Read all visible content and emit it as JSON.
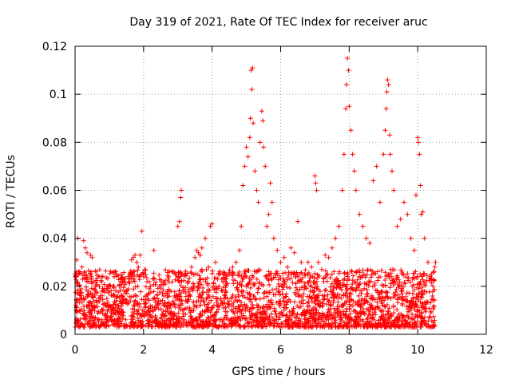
{
  "chart_data": {
    "type": "scatter",
    "title": "Day 319 of 2021, Rate Of TEC Index for receiver aruc",
    "xlabel": "GPS time / hours",
    "ylabel": "ROTI / TECUs",
    "xlim": [
      0,
      12
    ],
    "ylim": [
      0,
      0.12
    ],
    "xticks": [
      0,
      2,
      4,
      6,
      8,
      10,
      12
    ],
    "xtick_labels": [
      "0",
      "2",
      "4",
      "6",
      "8",
      "10",
      "12"
    ],
    "yticks": [
      0,
      0.02,
      0.04,
      0.06,
      0.08,
      0.1,
      0.12
    ],
    "ytick_labels": [
      "0",
      "0.02",
      "0.04",
      "0.06",
      "0.08",
      "0.1",
      "0.12"
    ],
    "grid": true,
    "marker": "+",
    "marker_color": "#ff0000",
    "series": [
      {
        "name": "ROTI",
        "points": [
          [
            0.02,
            0.012
          ],
          [
            0.05,
            0.031
          ],
          [
            0.08,
            0.04
          ],
          [
            0.1,
            0.025
          ],
          [
            0.15,
            0.018
          ],
          [
            0.2,
            0.028
          ],
          [
            0.25,
            0.039
          ],
          [
            0.3,
            0.036
          ],
          [
            0.35,
            0.034
          ],
          [
            0.4,
            0.022
          ],
          [
            0.45,
            0.033
          ],
          [
            0.5,
            0.032
          ],
          [
            0.6,
            0.02
          ],
          [
            0.7,
            0.015
          ],
          [
            0.8,
            0.01
          ],
          [
            0.9,
            0.012
          ],
          [
            1.0,
            0.018
          ],
          [
            1.1,
            0.016
          ],
          [
            1.2,
            0.014
          ],
          [
            1.3,
            0.02
          ],
          [
            1.4,
            0.022
          ],
          [
            1.5,
            0.018
          ],
          [
            1.6,
            0.025
          ],
          [
            1.65,
            0.031
          ],
          [
            1.7,
            0.032
          ],
          [
            1.75,
            0.033
          ],
          [
            1.8,
            0.03
          ],
          [
            1.85,
            0.028
          ],
          [
            1.9,
            0.033
          ],
          [
            1.95,
            0.043
          ],
          [
            2.0,
            0.024
          ],
          [
            2.1,
            0.022
          ],
          [
            2.2,
            0.02
          ],
          [
            2.3,
            0.035
          ],
          [
            2.4,
            0.015
          ],
          [
            2.6,
            0.012
          ],
          [
            2.8,
            0.018
          ],
          [
            2.9,
            0.016
          ],
          [
            3.0,
            0.045
          ],
          [
            3.05,
            0.047
          ],
          [
            3.08,
            0.057
          ],
          [
            3.1,
            0.06
          ],
          [
            3.2,
            0.025
          ],
          [
            3.3,
            0.022
          ],
          [
            3.4,
            0.028
          ],
          [
            3.5,
            0.032
          ],
          [
            3.55,
            0.035
          ],
          [
            3.6,
            0.034
          ],
          [
            3.65,
            0.033
          ],
          [
            3.7,
            0.036
          ],
          [
            3.8,
            0.04
          ],
          [
            3.9,
            0.028
          ],
          [
            3.95,
            0.045
          ],
          [
            4.0,
            0.046
          ],
          [
            4.1,
            0.03
          ],
          [
            4.2,
            0.02
          ],
          [
            4.3,
            0.018
          ],
          [
            4.4,
            0.022
          ],
          [
            4.5,
            0.025
          ],
          [
            4.6,
            0.028
          ],
          [
            4.7,
            0.03
          ],
          [
            4.8,
            0.035
          ],
          [
            4.85,
            0.045
          ],
          [
            4.9,
            0.062
          ],
          [
            4.95,
            0.07
          ],
          [
            5.0,
            0.078
          ],
          [
            5.05,
            0.074
          ],
          [
            5.1,
            0.082
          ],
          [
            5.12,
            0.09
          ],
          [
            5.14,
            0.11
          ],
          [
            5.16,
            0.102
          ],
          [
            5.18,
            0.111
          ],
          [
            5.2,
            0.088
          ],
          [
            5.25,
            0.068
          ],
          [
            5.3,
            0.06
          ],
          [
            5.35,
            0.055
          ],
          [
            5.4,
            0.08
          ],
          [
            5.45,
            0.093
          ],
          [
            5.48,
            0.089
          ],
          [
            5.5,
            0.078
          ],
          [
            5.55,
            0.07
          ],
          [
            5.6,
            0.045
          ],
          [
            5.65,
            0.05
          ],
          [
            5.7,
            0.063
          ],
          [
            5.75,
            0.055
          ],
          [
            5.8,
            0.04
          ],
          [
            5.9,
            0.035
          ],
          [
            6.0,
            0.03
          ],
          [
            6.1,
            0.032
          ],
          [
            6.2,
            0.028
          ],
          [
            6.3,
            0.036
          ],
          [
            6.4,
            0.034
          ],
          [
            6.5,
            0.047
          ],
          [
            6.6,
            0.03
          ],
          [
            6.7,
            0.025
          ],
          [
            6.8,
            0.03
          ],
          [
            6.9,
            0.028
          ],
          [
            7.0,
            0.066
          ],
          [
            7.02,
            0.063
          ],
          [
            7.05,
            0.06
          ],
          [
            7.1,
            0.03
          ],
          [
            7.2,
            0.027
          ],
          [
            7.3,
            0.033
          ],
          [
            7.4,
            0.032
          ],
          [
            7.5,
            0.036
          ],
          [
            7.6,
            0.04
          ],
          [
            7.7,
            0.045
          ],
          [
            7.8,
            0.06
          ],
          [
            7.85,
            0.075
          ],
          [
            7.9,
            0.094
          ],
          [
            7.92,
            0.104
          ],
          [
            7.95,
            0.115
          ],
          [
            7.98,
            0.11
          ],
          [
            8.0,
            0.095
          ],
          [
            8.05,
            0.085
          ],
          [
            8.1,
            0.075
          ],
          [
            8.15,
            0.068
          ],
          [
            8.2,
            0.06
          ],
          [
            8.3,
            0.05
          ],
          [
            8.4,
            0.045
          ],
          [
            8.5,
            0.04
          ],
          [
            8.6,
            0.038
          ],
          [
            8.7,
            0.064
          ],
          [
            8.8,
            0.07
          ],
          [
            8.9,
            0.055
          ],
          [
            9.0,
            0.075
          ],
          [
            9.05,
            0.085
          ],
          [
            9.08,
            0.094
          ],
          [
            9.1,
            0.101
          ],
          [
            9.12,
            0.106
          ],
          [
            9.15,
            0.104
          ],
          [
            9.18,
            0.083
          ],
          [
            9.2,
            0.075
          ],
          [
            9.25,
            0.068
          ],
          [
            9.3,
            0.06
          ],
          [
            9.4,
            0.045
          ],
          [
            9.5,
            0.048
          ],
          [
            9.6,
            0.055
          ],
          [
            9.7,
            0.05
          ],
          [
            9.8,
            0.04
          ],
          [
            9.9,
            0.035
          ],
          [
            9.95,
            0.058
          ],
          [
            10.0,
            0.082
          ],
          [
            10.02,
            0.08
          ],
          [
            10.05,
            0.075
          ],
          [
            10.08,
            0.062
          ],
          [
            10.1,
            0.05
          ],
          [
            10.15,
            0.051
          ],
          [
            10.2,
            0.04
          ],
          [
            10.3,
            0.03
          ],
          [
            10.4,
            0.025
          ],
          [
            10.5,
            0.028
          ],
          [
            10.52,
            0.03
          ]
        ]
      }
    ]
  }
}
